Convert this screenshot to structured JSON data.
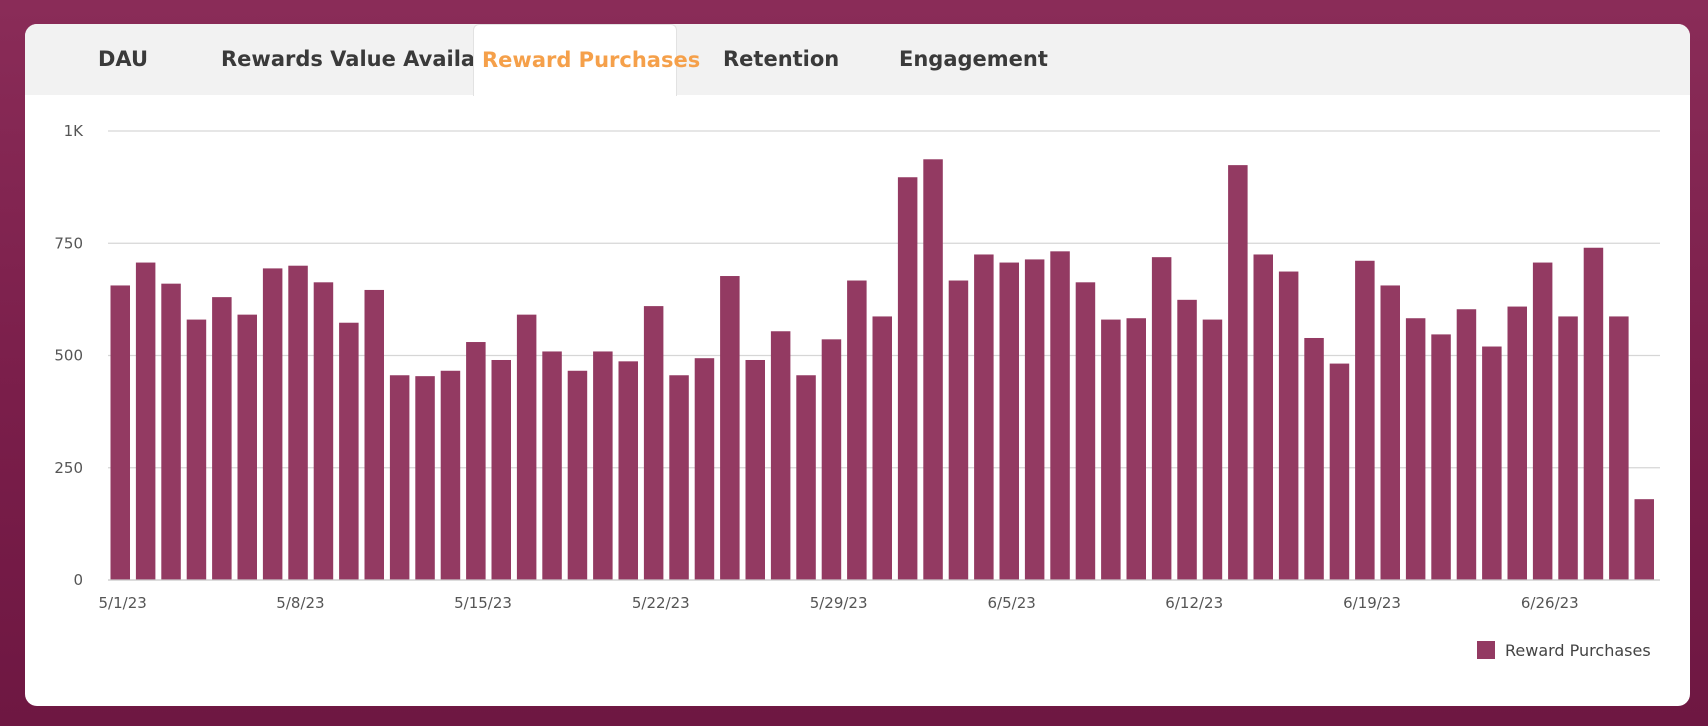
{
  "tabs": [
    {
      "label": "DAU",
      "active": false
    },
    {
      "label": "Rewards Value Available",
      "active": false
    },
    {
      "label": "Reward Purchases",
      "active": true
    },
    {
      "label": "Retention",
      "active": false
    },
    {
      "label": "Engagement",
      "active": false
    }
  ],
  "colors": {
    "bar": "#933a62",
    "active_tab": "#f5a04a",
    "grid": "#d6d6d6",
    "page_background": "#7d2250"
  },
  "chart_data": {
    "type": "bar",
    "title": "",
    "xlabel": "",
    "ylabel": "",
    "ylim": [
      0,
      1000
    ],
    "yticks": [
      0,
      250,
      500,
      750,
      1000
    ],
    "ytick_labels": [
      "0",
      "250",
      "500",
      "750",
      "1K"
    ],
    "xtick_labels": [
      "5/1/23",
      "5/8/23",
      "5/15/23",
      "5/22/23",
      "5/29/23",
      "6/5/23",
      "6/12/23",
      "6/19/23",
      "6/26/23"
    ],
    "grid": true,
    "legend_position": "bottom-right",
    "x_start": "2023-05-01",
    "x_end": "2023-07-01",
    "series": [
      {
        "name": "Reward Purchases",
        "values": [
          656,
          707,
          660,
          580,
          630,
          591,
          694,
          700,
          663,
          573,
          646,
          456,
          454,
          466,
          530,
          490,
          591,
          509,
          466,
          509,
          487,
          610,
          456,
          494,
          677,
          490,
          554,
          456,
          536,
          667,
          587,
          897,
          937,
          667,
          725,
          707,
          714,
          732,
          663,
          580,
          583,
          719,
          624,
          580,
          924,
          725,
          687,
          539,
          482,
          711,
          656,
          583,
          547,
          603,
          520,
          609,
          707,
          587,
          740,
          587,
          180
        ]
      }
    ]
  }
}
